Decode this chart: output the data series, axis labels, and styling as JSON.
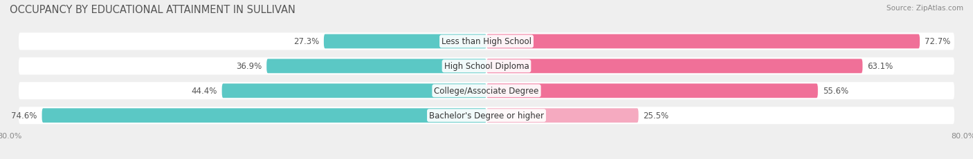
{
  "title": "OCCUPANCY BY EDUCATIONAL ATTAINMENT IN SULLIVAN",
  "source": "Source: ZipAtlas.com",
  "categories": [
    "Less than High School",
    "High School Diploma",
    "College/Associate Degree",
    "Bachelor's Degree or higher"
  ],
  "owner_values": [
    27.3,
    36.9,
    44.4,
    74.6
  ],
  "renter_values": [
    72.7,
    63.1,
    55.6,
    25.5
  ],
  "owner_color": "#5bc8c5",
  "renter_colors": [
    "#f07098",
    "#f07098",
    "#f07098",
    "#f5aac0"
  ],
  "bar_height": 0.58,
  "xlim_left": -80.0,
  "xlim_right": 80.0,
  "background_color": "#efefef",
  "bar_background": "#ffffff",
  "title_fontsize": 10.5,
  "label_fontsize": 8.5,
  "value_fontsize": 8.5,
  "tick_fontsize": 8,
  "source_fontsize": 7.5,
  "legend_fontsize": 8.5
}
